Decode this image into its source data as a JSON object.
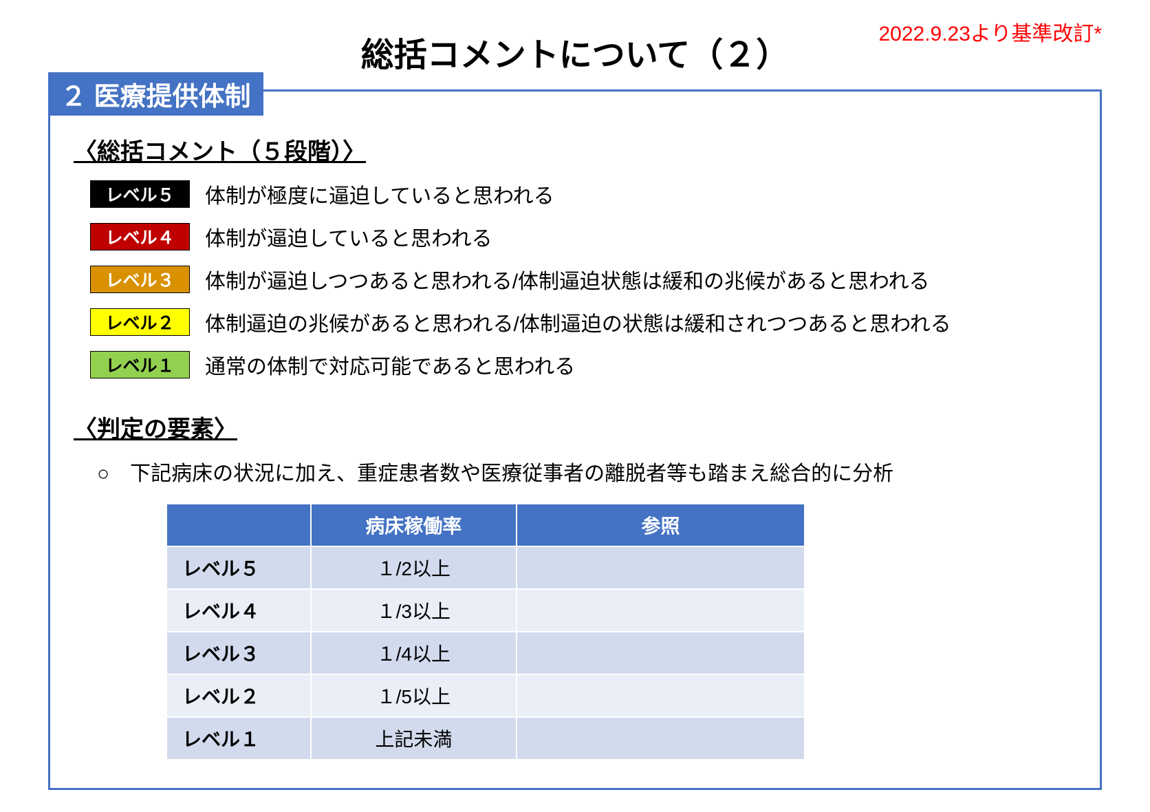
{
  "revision_note": "2022.9.23より基準改訂*",
  "page_title": "総括コメントについて（２）",
  "section": {
    "tab_label": "２  医療提供体制",
    "summary_heading": "〈総括コメント（５段階）〉",
    "levels": [
      {
        "label": "レベル５",
        "desc": "体制が極度に逼迫していると思われる",
        "bg": "#000000",
        "fg": "#ffffff",
        "border": "#000000"
      },
      {
        "label": "レベル４",
        "desc": "体制が逼迫していると思われる",
        "bg": "#c00000",
        "fg": "#ffffff",
        "border": "#000000"
      },
      {
        "label": "レベル３",
        "desc": "体制が逼迫しつつあると思われる/体制逼迫状態は緩和の兆候があると思われる",
        "bg": "#d99100",
        "fg": "#ffffff",
        "border": "#000000"
      },
      {
        "label": "レベル２",
        "desc": "体制逼迫の兆候があると思われる/体制逼迫の状態は緩和されつつあると思われる",
        "bg": "#ffff00",
        "fg": "#000000",
        "border": "#000000"
      },
      {
        "label": "レベル１",
        "desc": "通常の体制で対応可能であると思われる",
        "bg": "#92d050",
        "fg": "#000000",
        "border": "#000000"
      }
    ],
    "criteria_heading": "〈判定の要素〉",
    "criteria_note": "○　下記病床の状況に加え、重症患者数や医療従事者の離脱者等も踏まえ総合的に分析",
    "table": {
      "header_bg": "#4472c4",
      "header_fg": "#ffffff",
      "row_bg_a": "#d2dbed",
      "row_bg_b": "#eaeef7",
      "columns": [
        "",
        "病床稼働率",
        "参照"
      ],
      "rows": [
        [
          "レベル５",
          "１/2以上",
          ""
        ],
        [
          "レベル４",
          "１/3以上",
          ""
        ],
        [
          "レベル３",
          "１/4以上",
          ""
        ],
        [
          "レベル２",
          "１/5以上",
          ""
        ],
        [
          "レベル１",
          "上記未満",
          ""
        ]
      ]
    }
  }
}
